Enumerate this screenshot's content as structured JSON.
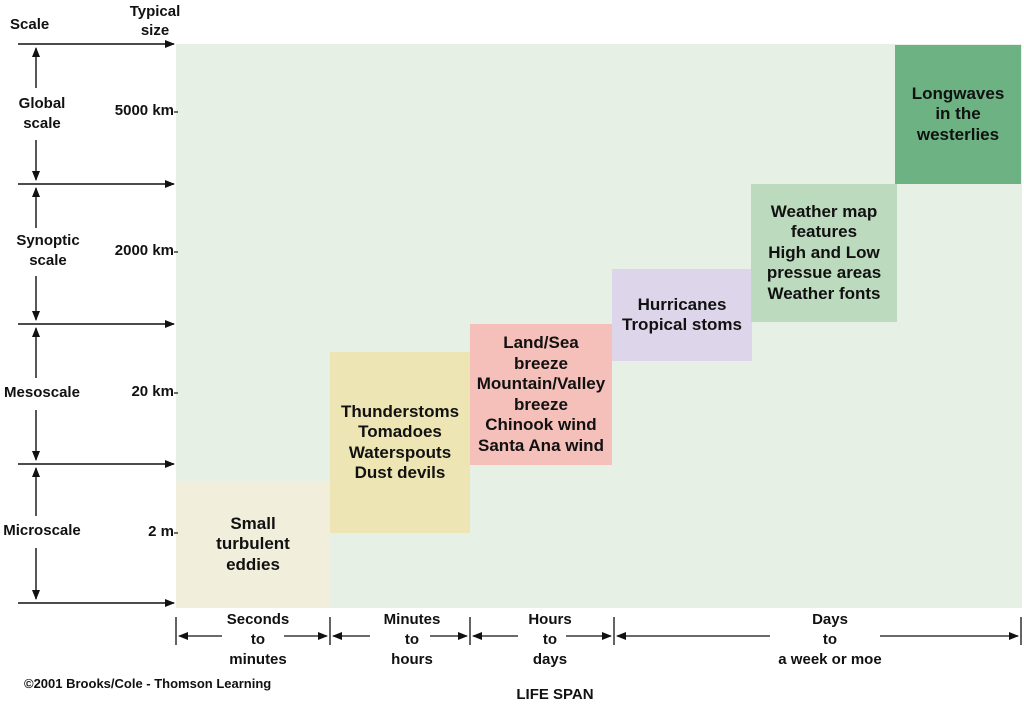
{
  "header": {
    "scale_label": "Scale",
    "typical_size_label": "Typical\nsize"
  },
  "scales": [
    {
      "name": "Global\nscale",
      "size": "5000 km"
    },
    {
      "name": "Synoptic\nscale",
      "size": "2000 km"
    },
    {
      "name": "Mesoscale",
      "size": "20 km"
    },
    {
      "name": "Microscale",
      "size": "2 m"
    }
  ],
  "phenomena": [
    {
      "text": "Small\nturbulent\neddies",
      "color": "#f1eedc"
    },
    {
      "text": "Thunderstoms\nTomadoes\nWaterspouts\nDust devils",
      "color": "#ede6b4"
    },
    {
      "text": "Land/Sea\nbreeze\nMountain/Valley\nbreeze\nChinook wind\nSanta Ana wind",
      "color": "#f5bfba"
    },
    {
      "text": "Hurricanes\nTropical stoms",
      "color": "#ddd6ea"
    },
    {
      "text": "Weather map\nfeatures\nHigh and Low\npressue areas\nWeather fonts",
      "color": "#bcdabd"
    },
    {
      "text": "Longwaves\nin the\nwesterlies",
      "color": "#6db282"
    }
  ],
  "life_spans": [
    {
      "label": "Seconds\nto\nminutes"
    },
    {
      "label": "Minutes\nto\nhours"
    },
    {
      "label": "Hours\nto\ndays"
    },
    {
      "label": "Days\nto\na week or moe"
    }
  ],
  "axis_title": "LIFE SPAN",
  "copyright": "©2001 Brooks/Cole - Thomson Learning",
  "colors": {
    "background": "#e6f0e4",
    "arrow": "#111111"
  }
}
